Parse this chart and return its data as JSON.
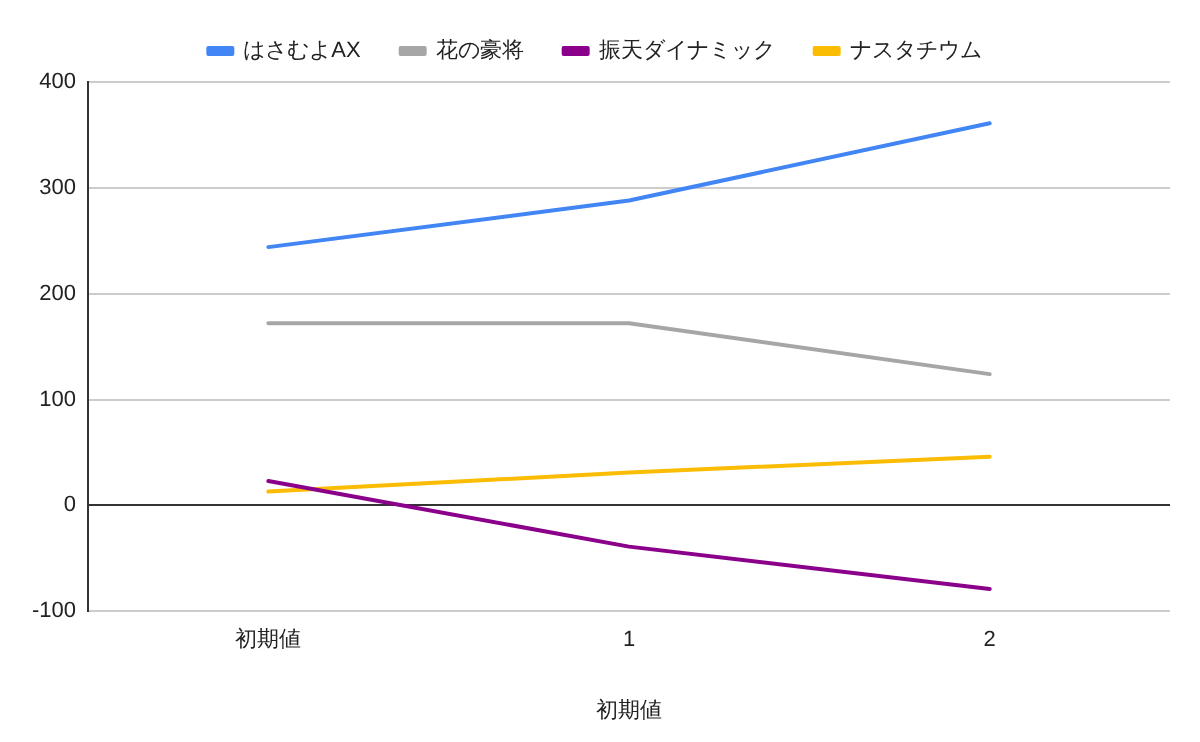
{
  "chart_data": {
    "type": "line",
    "xlabel": "初期値",
    "categories": [
      "初期値",
      "1",
      "2"
    ],
    "series": [
      {
        "name": "はさむよAX",
        "color": "#4285f4",
        "values": [
          244,
          288,
          361
        ]
      },
      {
        "name": "花の豪将",
        "color": "#a6a6a6",
        "values": [
          172,
          172,
          124
        ]
      },
      {
        "name": "振天ダイナミック",
        "color": "#8b008b",
        "values": [
          23,
          -39,
          -79
        ]
      },
      {
        "name": "ナスタチウム",
        "color": "#fbbc04",
        "values": [
          13,
          31,
          46
        ]
      }
    ],
    "ylim": [
      -100,
      400
    ],
    "yticks": [
      -100,
      0,
      100,
      200,
      300,
      400
    ],
    "grid": "y",
    "legend": "top",
    "marker": "none",
    "line_style": "solid"
  }
}
